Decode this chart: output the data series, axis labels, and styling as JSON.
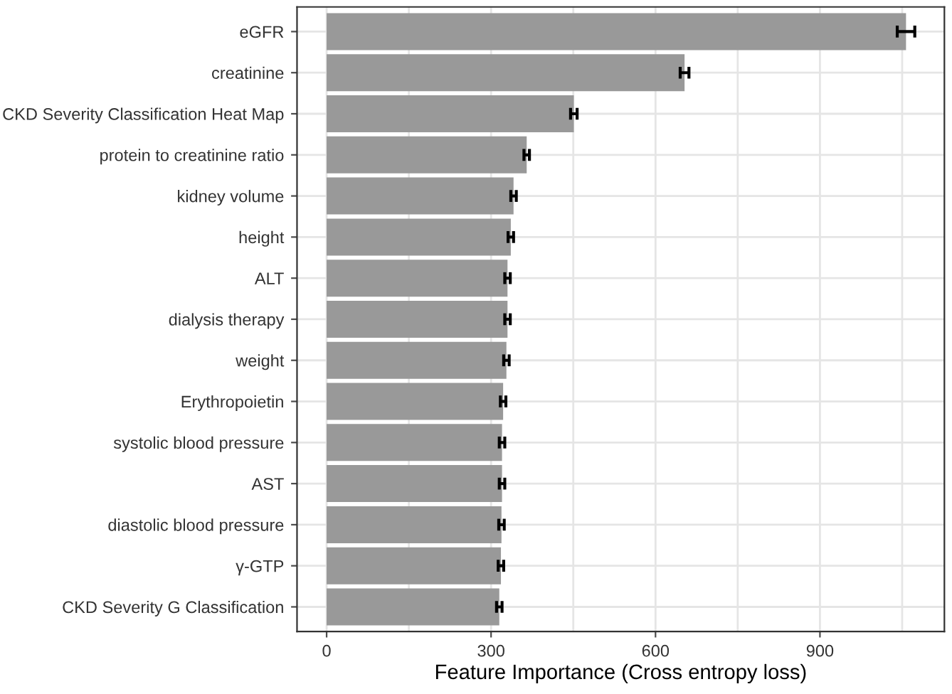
{
  "chart_data": {
    "type": "bar",
    "orientation": "horizontal",
    "xlabel": "Feature Importance (Cross entropy loss)",
    "categories": [
      "eGFR",
      "creatinine",
      "CKD Severity Classification Heat Map",
      "protein to creatinine ratio",
      "kidney volume",
      "height",
      "ALT",
      "dialysis therapy",
      "weight",
      "Erythropoietin",
      "systolic blood pressure",
      "AST",
      "diastolic blood pressure",
      "γ-GTP",
      "CKD Severity G Classification"
    ],
    "values": [
      1057,
      653,
      451,
      365,
      341,
      336,
      330,
      330,
      328,
      322,
      320,
      320,
      319,
      318,
      315
    ],
    "errors": [
      16,
      8,
      6,
      5,
      5,
      5,
      5,
      5,
      5,
      5,
      5,
      5,
      5,
      5,
      5
    ],
    "color": "#999999",
    "xlim": [
      -54,
      1127
    ],
    "xticks": [
      0,
      {
        "value": 150,
        "label": null
      },
      300,
      {
        "value": 450,
        "label": null
      },
      600,
      {
        "value": 750,
        "label": null
      },
      900,
      {
        "value": 1050,
        "label": null
      }
    ],
    "grid": true
  }
}
